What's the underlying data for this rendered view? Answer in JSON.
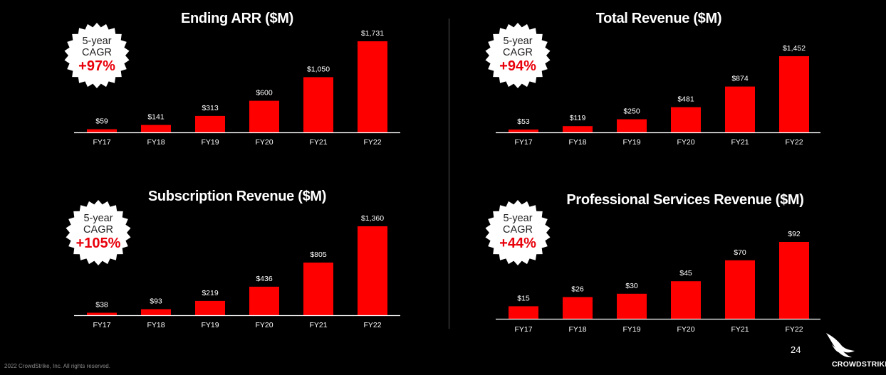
{
  "colors": {
    "bar": "#ff0000",
    "background": "#000000",
    "axis": "#ffffff",
    "cagr_accent": "#e8000b"
  },
  "chart_data": [
    {
      "type": "bar",
      "title": "Ending ARR ($M)",
      "categories": [
        "FY17",
        "FY18",
        "FY19",
        "FY20",
        "FY21",
        "FY22"
      ],
      "values": [
        59,
        141,
        313,
        600,
        1050,
        1731
      ],
      "value_labels": [
        "$59",
        "$141",
        "$313",
        "$600",
        "$1,050",
        "$1,731"
      ],
      "badge": {
        "line1": "5-year",
        "line2": "CAGR",
        "value": "+97%"
      }
    },
    {
      "type": "bar",
      "title": "Total Revenue ($M)",
      "categories": [
        "FY17",
        "FY18",
        "FY19",
        "FY20",
        "FY21",
        "FY22"
      ],
      "values": [
        53,
        119,
        250,
        481,
        874,
        1452
      ],
      "value_labels": [
        "$53",
        "$119",
        "$250",
        "$481",
        "$874",
        "$1,452"
      ],
      "badge": {
        "line1": "5-year",
        "line2": "CAGR",
        "value": "+94%"
      }
    },
    {
      "type": "bar",
      "title": "Subscription Revenue ($M)",
      "categories": [
        "FY17",
        "FY18",
        "FY19",
        "FY20",
        "FY21",
        "FY22"
      ],
      "values": [
        38,
        93,
        219,
        436,
        805,
        1360
      ],
      "value_labels": [
        "$38",
        "$93",
        "$219",
        "$436",
        "$805",
        "$1,360"
      ],
      "badge": {
        "line1": "5-year",
        "line2": "CAGR",
        "value": "+105%"
      }
    },
    {
      "type": "bar",
      "title": "Professional Services Revenue ($M)",
      "categories": [
        "FY17",
        "FY18",
        "FY19",
        "FY20",
        "FY21",
        "FY22"
      ],
      "values": [
        15,
        26,
        30,
        45,
        70,
        92
      ],
      "value_labels": [
        "$15",
        "$26",
        "$30",
        "$45",
        "$70",
        "$92"
      ],
      "badge": {
        "line1": "5-year",
        "line2": "CAGR",
        "value": "+44%"
      }
    }
  ],
  "footer": {
    "copyright": "2022 CrowdStrike, Inc. All rights reserved.",
    "page_number": "24",
    "brand": "CROWDSTRIKE"
  },
  "icons": {
    "logo": "falcon-logo-icon"
  }
}
